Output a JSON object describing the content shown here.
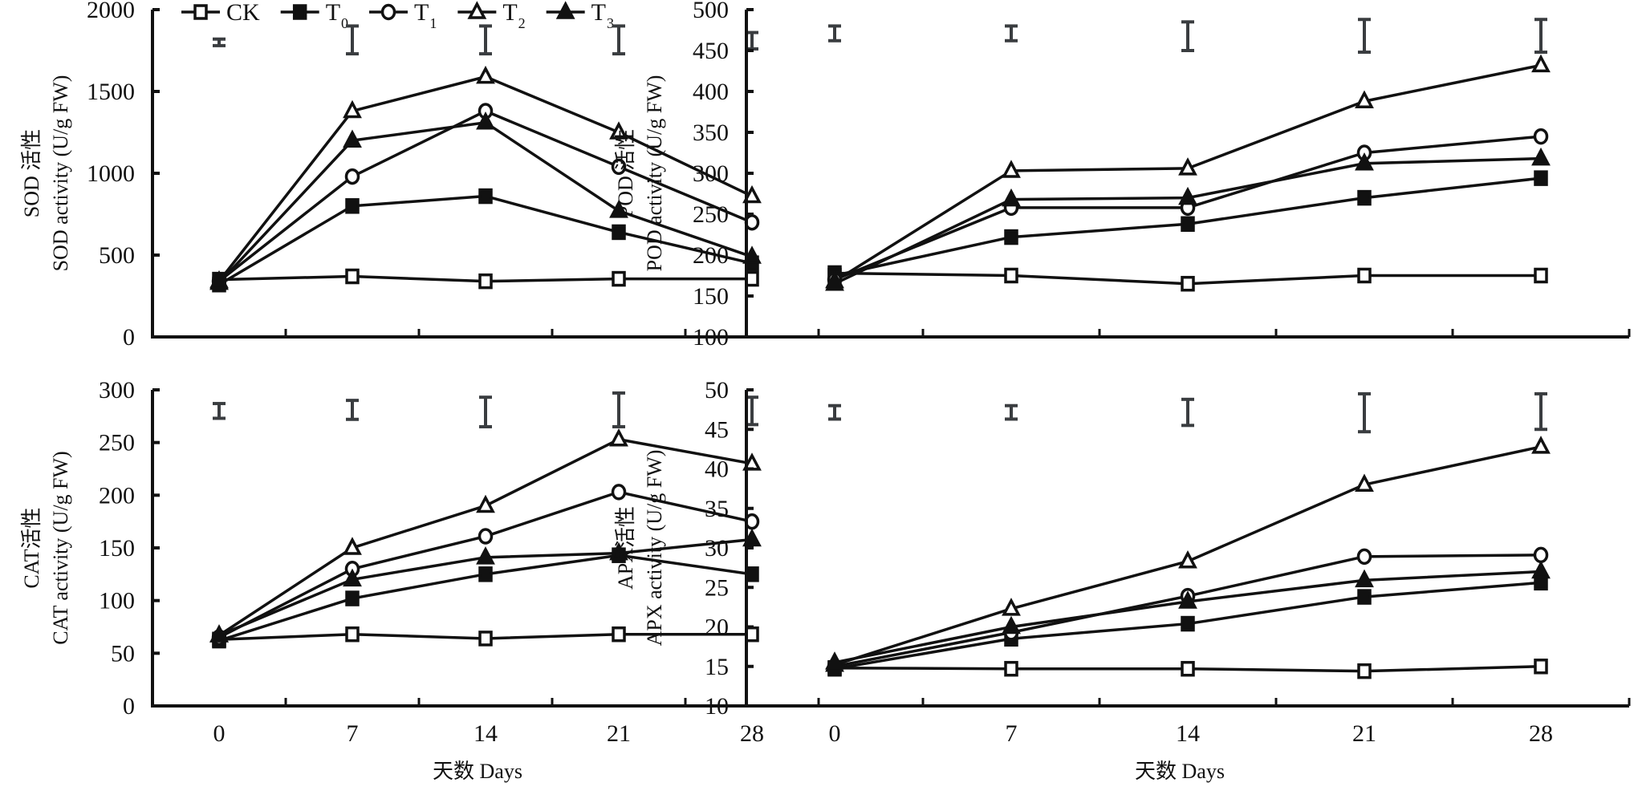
{
  "legend": [
    {
      "key": "CK",
      "label": "CK",
      "sub": "",
      "marker": "square-open"
    },
    {
      "key": "T0",
      "label": "T",
      "sub": "0",
      "marker": "square-filled"
    },
    {
      "key": "T1",
      "label": "T",
      "sub": "1",
      "marker": "circle-open"
    },
    {
      "key": "T2",
      "label": "T",
      "sub": "2",
      "marker": "triangle-open"
    },
    {
      "key": "T3",
      "label": "T",
      "sub": "3",
      "marker": "triangle-filled"
    }
  ],
  "colors": {
    "line": "#111111",
    "error_bar": "#3a3d40",
    "background": "#ffffff"
  },
  "chart_data": [
    {
      "id": "sod",
      "type": "line",
      "ylabel_cn": "SOD 活性",
      "ylabel_en": "SOD activity (U/g FW)",
      "xlabel": "",
      "categories": [
        "0",
        "7",
        "14",
        "21",
        "28"
      ],
      "ylim": [
        0,
        2000
      ],
      "yticks": [
        0,
        500,
        1000,
        1500,
        2000
      ],
      "show_xticklabels": false,
      "grid": false,
      "legend": "top",
      "error_bars": [
        [
          1780,
          1820
        ],
        [
          1730,
          1900
        ],
        [
          1730,
          1900
        ],
        [
          1730,
          1900
        ],
        [
          1760,
          1860
        ]
      ],
      "series": [
        {
          "name": "CK",
          "values": [
            350,
            370,
            340,
            355,
            355
          ]
        },
        {
          "name": "T0",
          "values": [
            320,
            800,
            860,
            640,
            450
          ]
        },
        {
          "name": "T1",
          "values": [
            340,
            980,
            1380,
            1040,
            700
          ]
        },
        {
          "name": "T2",
          "values": [
            340,
            1380,
            1590,
            1250,
            860
          ]
        },
        {
          "name": "T3",
          "values": [
            330,
            1200,
            1310,
            770,
            490
          ]
        }
      ]
    },
    {
      "id": "pod",
      "type": "line",
      "ylabel_cn": "POD 活性",
      "ylabel_en": "POD activity (U/g FW)",
      "xlabel": "",
      "categories": [
        "0",
        "7",
        "14",
        "21",
        "28"
      ],
      "ylim": [
        100,
        500
      ],
      "yticks": [
        100,
        150,
        200,
        250,
        300,
        350,
        400,
        450,
        500
      ],
      "show_xticklabels": false,
      "grid": false,
      "error_bars": [
        [
          462,
          480
        ],
        [
          462,
          480
        ],
        [
          450,
          485
        ],
        [
          448,
          488
        ],
        [
          448,
          488
        ]
      ],
      "series": [
        {
          "name": "CK",
          "values": [
            178,
            175,
            165,
            175,
            175
          ]
        },
        {
          "name": "T0",
          "values": [
            175,
            222,
            238,
            270,
            294
          ]
        },
        {
          "name": "T1",
          "values": [
            170,
            258,
            258,
            325,
            345
          ]
        },
        {
          "name": "T2",
          "values": [
            168,
            303,
            306,
            388,
            432
          ]
        },
        {
          "name": "T3",
          "values": [
            165,
            268,
            270,
            312,
            318
          ]
        }
      ]
    },
    {
      "id": "cat",
      "type": "line",
      "ylabel_cn": "CAT活性",
      "ylabel_en": "CAT activity (U/g FW)",
      "xlabel": "天数 Days",
      "categories": [
        "0",
        "7",
        "14",
        "21",
        "28"
      ],
      "ylim": [
        0,
        300
      ],
      "yticks": [
        0,
        50,
        100,
        150,
        200,
        250,
        300
      ],
      "show_xticklabels": true,
      "grid": false,
      "error_bars": [
        [
          273,
          287
        ],
        [
          272,
          290
        ],
        [
          265,
          293
        ],
        [
          265,
          297
        ],
        [
          267,
          293
        ]
      ],
      "series": [
        {
          "name": "CK",
          "values": [
            63,
            68,
            64,
            68,
            68
          ]
        },
        {
          "name": "T0",
          "values": [
            62,
            102,
            125,
            143,
            125
          ]
        },
        {
          "name": "T1",
          "values": [
            65,
            130,
            161,
            203,
            175
          ]
        },
        {
          "name": "T2",
          "values": [
            67,
            150,
            190,
            253,
            230
          ]
        },
        {
          "name": "T3",
          "values": [
            67,
            120,
            141,
            145,
            158
          ]
        }
      ]
    },
    {
      "id": "apx",
      "type": "line",
      "ylabel_cn": "APX活性",
      "ylabel_en": "APX activity (U/g FW)",
      "xlabel": "天数 Days",
      "categories": [
        "0",
        "7",
        "14",
        "21",
        "28"
      ],
      "ylim": [
        10,
        50
      ],
      "yticks": [
        10,
        15,
        20,
        25,
        30,
        35,
        40,
        45,
        50
      ],
      "show_xticklabels": true,
      "grid": false,
      "error_bars": [
        [
          46.3,
          48.0
        ],
        [
          46.3,
          48.0
        ],
        [
          45.5,
          48.8
        ],
        [
          44.7,
          49.5
        ],
        [
          45.0,
          49.5
        ]
      ],
      "series": [
        {
          "name": "CK",
          "values": [
            14.8,
            14.7,
            14.7,
            14.4,
            15.0
          ]
        },
        {
          "name": "T0",
          "values": [
            14.7,
            18.5,
            20.4,
            23.8,
            25.6
          ]
        },
        {
          "name": "T1",
          "values": [
            15.0,
            19.3,
            23.9,
            28.9,
            29.1
          ]
        },
        {
          "name": "T2",
          "values": [
            15.2,
            22.3,
            28.3,
            38.0,
            42.8
          ]
        },
        {
          "name": "T3",
          "values": [
            15.5,
            20.0,
            23.2,
            25.9,
            27.0
          ]
        }
      ]
    }
  ]
}
